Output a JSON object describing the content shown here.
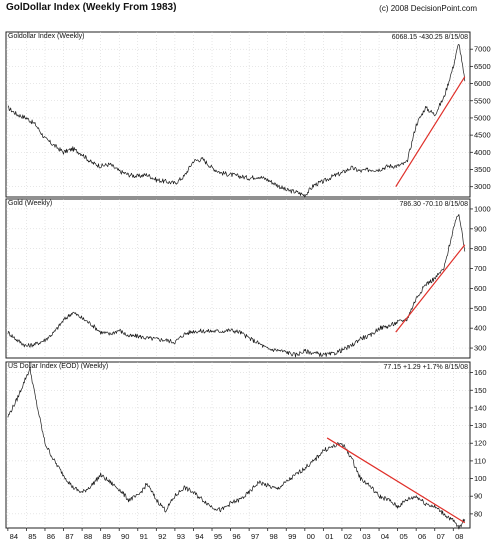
{
  "header": {
    "title": "GolDollar Index (Weekly From 1983)",
    "credit": "(c) 2008 DecisionPoint.com"
  },
  "chart_data": [
    {
      "type": "line",
      "id": "goldollar",
      "panel_title": "Goldollar Index (Weekly)",
      "last_value_label": "6068.15 -430.25 8/15/08",
      "x": [
        1984,
        1984.5,
        1985,
        1985.5,
        1986,
        1986.5,
        1987,
        1987.5,
        1988,
        1988.5,
        1989,
        1989.5,
        1990,
        1990.5,
        1991,
        1991.5,
        1992,
        1992.5,
        1993,
        1993.5,
        1994,
        1994.5,
        1995,
        1995.5,
        1996,
        1996.5,
        1997,
        1997.5,
        1998,
        1998.5,
        1999,
        1999.5,
        2000,
        2000.5,
        2001,
        2001.5,
        2002,
        2002.5,
        2003,
        2003.5,
        2004,
        2004.5,
        2005,
        2005.5,
        2006,
        2006.5,
        2007,
        2007.5,
        2008,
        2008.3,
        2008.62
      ],
      "values": [
        5300,
        5100,
        5000,
        4800,
        4400,
        4200,
        4000,
        4100,
        3950,
        3700,
        3600,
        3650,
        3450,
        3350,
        3300,
        3350,
        3200,
        3150,
        3100,
        3300,
        3750,
        3800,
        3550,
        3400,
        3350,
        3300,
        3250,
        3300,
        3200,
        3050,
        2900,
        2850,
        2750,
        3050,
        3150,
        3300,
        3400,
        3550,
        3450,
        3500,
        3500,
        3600,
        3600,
        3700,
        4800,
        5300,
        5100,
        5600,
        6500,
        7200,
        6068
      ],
      "trendline": [
        [
          2004.9,
          3000
        ],
        [
          2008.62,
          6200
        ]
      ],
      "y_ticks": [
        3000,
        3500,
        4000,
        4500,
        5000,
        5500,
        6000,
        6500,
        7000
      ],
      "y_tick_labels": [
        "3000",
        "3500",
        "4000",
        "4500",
        "5000",
        "5500",
        "6000",
        "6500",
        "7000"
      ],
      "ylim": [
        2700,
        7500
      ]
    },
    {
      "type": "line",
      "id": "gold",
      "panel_title": "Gold (Weekly)",
      "last_value_label": "786.30 -70.10 8/15/08",
      "x": [
        1984,
        1984.5,
        1985,
        1985.5,
        1986,
        1986.5,
        1987,
        1987.5,
        1988,
        1988.5,
        1989,
        1989.5,
        1990,
        1990.5,
        1991,
        1991.5,
        1992,
        1992.5,
        1993,
        1993.5,
        1994,
        1994.5,
        1995,
        1995.5,
        1996,
        1996.5,
        1997,
        1997.5,
        1998,
        1998.5,
        1999,
        1999.5,
        2000,
        2000.5,
        2001,
        2001.5,
        2002,
        2002.5,
        2003,
        2003.5,
        2004,
        2004.5,
        2005,
        2005.5,
        2006,
        2006.5,
        2007,
        2007.5,
        2008,
        2008.3,
        2008.62
      ],
      "values": [
        380,
        340,
        310,
        320,
        340,
        380,
        440,
        480,
        450,
        420,
        380,
        370,
        390,
        360,
        360,
        350,
        345,
        340,
        330,
        370,
        385,
        385,
        385,
        385,
        390,
        380,
        350,
        325,
        295,
        290,
        280,
        265,
        285,
        275,
        265,
        270,
        290,
        310,
        350,
        360,
        400,
        410,
        430,
        445,
        550,
        620,
        650,
        700,
        900,
        980,
        786
      ],
      "trendline": [
        [
          2004.9,
          380
        ],
        [
          2008.62,
          820
        ]
      ],
      "y_ticks": [
        300,
        400,
        500,
        600,
        700,
        800,
        900,
        1000
      ],
      "y_tick_labels": [
        "300",
        "400",
        "500",
        "600",
        "700",
        "800",
        "900",
        "1000"
      ],
      "ylim": [
        250,
        1050
      ]
    },
    {
      "type": "line",
      "id": "usd",
      "panel_title": "US Dollar Index (EOD) (Weekly)",
      "last_value_label": "77.15 +1.29 +1.7% 8/15/08",
      "x": [
        1984,
        1984.5,
        1985,
        1985.2,
        1985.5,
        1986,
        1986.5,
        1987,
        1987.5,
        1988,
        1988.5,
        1989,
        1989.5,
        1990,
        1990.5,
        1991,
        1991.5,
        1992,
        1992.5,
        1993,
        1993.5,
        1994,
        1994.5,
        1995,
        1995.5,
        1996,
        1996.5,
        1997,
        1997.5,
        1998,
        1998.5,
        1999,
        1999.5,
        2000,
        2000.5,
        2001,
        2001.5,
        2002,
        2002.5,
        2003,
        2003.5,
        2004,
        2004.5,
        2005,
        2005.5,
        2006,
        2006.5,
        2007,
        2007.5,
        2008,
        2008.3,
        2008.62
      ],
      "values": [
        135,
        145,
        158,
        162,
        145,
        120,
        110,
        102,
        95,
        92,
        96,
        102,
        98,
        94,
        88,
        90,
        97,
        88,
        82,
        90,
        95,
        92,
        88,
        84,
        82,
        86,
        88,
        92,
        98,
        96,
        94,
        98,
        102,
        106,
        110,
        116,
        118,
        120,
        112,
        100,
        96,
        90,
        88,
        84,
        88,
        90,
        86,
        84,
        80,
        76,
        72,
        77
      ],
      "trendline": [
        [
          2001.2,
          123
        ],
        [
          2008.62,
          75
        ]
      ],
      "y_ticks": [
        80,
        90,
        100,
        110,
        120,
        130,
        140,
        150,
        160
      ],
      "y_tick_labels": [
        "80",
        "90",
        "100",
        "110",
        "120",
        "130",
        "140",
        "150",
        "160"
      ],
      "ylim": [
        72,
        166
      ]
    }
  ],
  "x_axis": {
    "tick_years": [
      1984,
      1985,
      1986,
      1987,
      1988,
      1989,
      1990,
      1991,
      1992,
      1993,
      1994,
      1995,
      1996,
      1997,
      1998,
      1999,
      2000,
      2001,
      2002,
      2003,
      2004,
      2005,
      2006,
      2007,
      2008
    ],
    "tick_labels": [
      "84",
      "85",
      "86",
      "87",
      "88",
      "89",
      "90",
      "91",
      "92",
      "93",
      "94",
      "95",
      "96",
      "97",
      "98",
      "99",
      "00",
      "01",
      "02",
      "03",
      "04",
      "05",
      "06",
      "07",
      "08"
    ],
    "xlim": [
      1983.9,
      2008.9
    ]
  },
  "colors": {
    "line": "#1a1a1a",
    "trend": "#e0302a",
    "frame": "#222",
    "grid": "#cfcfcf"
  }
}
